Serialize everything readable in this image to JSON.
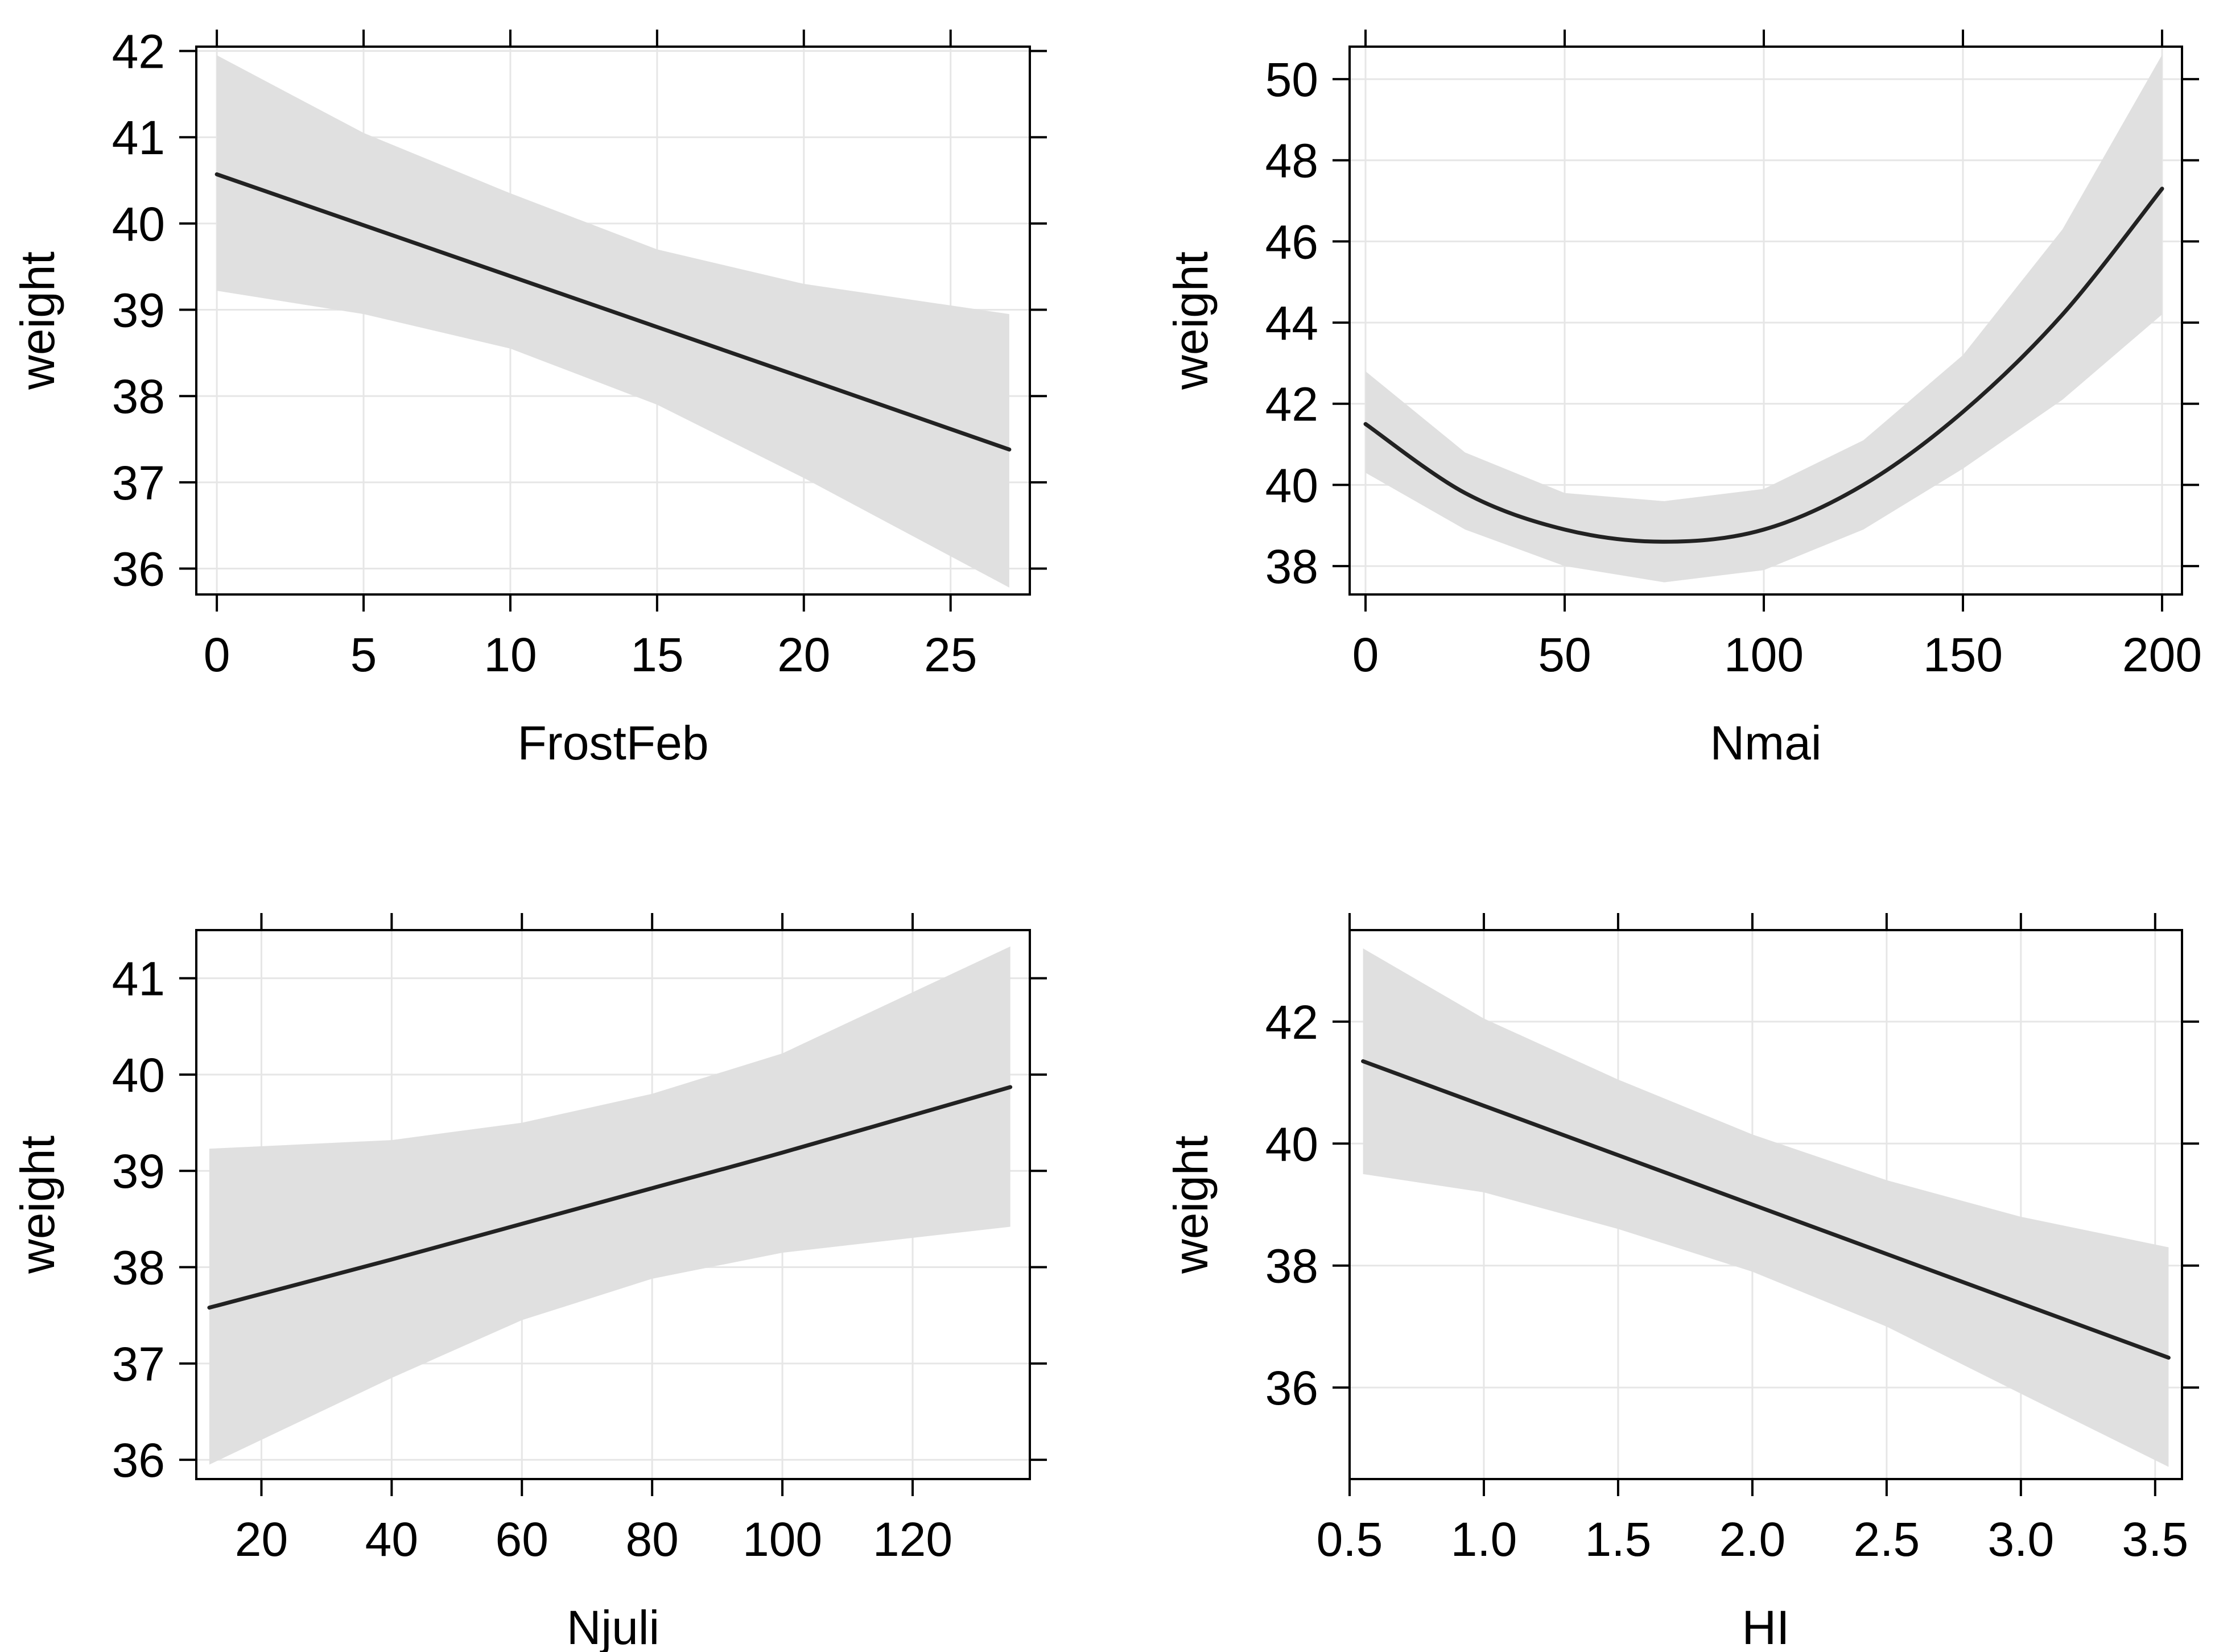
{
  "figure": {
    "type": "effect-plots",
    "panels": 4
  },
  "colors": {
    "line": "#222222",
    "band": "#e0e0e0",
    "grid": "#e6e6e6",
    "frame": "#000000",
    "text": "#000000"
  },
  "chart_data": [
    {
      "type": "line",
      "title": "",
      "xlabel": "FrostFeb",
      "ylabel": "weight",
      "xlim": [
        -0.7,
        27.7
      ],
      "ylim": [
        35.7,
        42.05
      ],
      "x_ticks": [
        0,
        5,
        10,
        15,
        20,
        25
      ],
      "x_tick_labels": [
        "0",
        "5",
        "10",
        "15",
        "20",
        "25"
      ],
      "y_ticks": [
        36,
        37,
        38,
        39,
        40,
        41,
        42
      ],
      "y_tick_labels": [
        "36",
        "37",
        "38",
        "39",
        "40",
        41,
        "42"
      ],
      "series": [
        {
          "name": "fit",
          "x": [
            0,
            5,
            10,
            15,
            20,
            27
          ],
          "y": [
            40.57,
            39.98,
            39.39,
            38.8,
            38.21,
            37.38
          ]
        },
        {
          "name": "lower",
          "x": [
            0,
            5,
            10,
            15,
            20,
            27
          ],
          "y": [
            39.22,
            38.95,
            38.55,
            37.9,
            37.05,
            35.78
          ]
        },
        {
          "name": "upper",
          "x": [
            0,
            5,
            10,
            15,
            20,
            27
          ],
          "y": [
            41.95,
            41.05,
            40.35,
            39.7,
            39.3,
            38.95
          ]
        }
      ]
    },
    {
      "type": "line",
      "title": "",
      "xlabel": "Nmai",
      "ylabel": "weight",
      "xlim": [
        -4,
        205
      ],
      "ylim": [
        37.3,
        50.8
      ],
      "x_ticks": [
        0,
        50,
        100,
        150,
        200
      ],
      "x_tick_labels": [
        "0",
        "50",
        "100",
        "150",
        "200"
      ],
      "y_ticks": [
        38,
        40,
        42,
        44,
        46,
        48,
        50
      ],
      "y_tick_labels": [
        "38",
        "40",
        "42",
        "44",
        "46",
        "48",
        "50"
      ],
      "series": [
        {
          "name": "fit",
          "x": [
            0,
            25,
            50,
            75,
            100,
            125,
            150,
            175,
            200
          ],
          "y": [
            41.5,
            39.8,
            38.9,
            38.6,
            38.9,
            40.0,
            41.8,
            44.2,
            47.3
          ]
        },
        {
          "name": "lower",
          "x": [
            0,
            25,
            50,
            75,
            100,
            125,
            150,
            175,
            200
          ],
          "y": [
            40.3,
            38.9,
            38.0,
            37.6,
            37.9,
            38.9,
            40.4,
            42.1,
            44.2
          ]
        },
        {
          "name": "upper",
          "x": [
            0,
            25,
            50,
            75,
            100,
            125,
            150,
            175,
            200
          ],
          "y": [
            42.8,
            40.8,
            39.8,
            39.6,
            39.9,
            41.1,
            43.2,
            46.3,
            50.6
          ]
        }
      ]
    },
    {
      "type": "line",
      "title": "",
      "xlabel": "Njuli",
      "ylabel": "weight",
      "xlim": [
        10,
        138
      ],
      "ylim": [
        35.8,
        41.5
      ],
      "x_ticks": [
        20,
        40,
        60,
        80,
        100,
        120
      ],
      "x_tick_labels": [
        "20",
        "40",
        "60",
        "80",
        "100",
        "120"
      ],
      "y_ticks": [
        36,
        37,
        38,
        39,
        40,
        41
      ],
      "y_tick_labels": [
        "36",
        "37",
        "38",
        "39",
        "40",
        "41"
      ],
      "series": [
        {
          "name": "fit",
          "x": [
            12,
            40,
            60,
            80,
            100,
            135
          ],
          "y": [
            37.58,
            38.08,
            38.45,
            38.82,
            39.19,
            39.87
          ]
        },
        {
          "name": "lower",
          "x": [
            12,
            40,
            60,
            80,
            100,
            135
          ],
          "y": [
            35.95,
            36.85,
            37.45,
            37.88,
            38.15,
            38.42
          ]
        },
        {
          "name": "upper",
          "x": [
            12,
            40,
            60,
            80,
            100,
            135
          ],
          "y": [
            39.23,
            39.32,
            39.5,
            39.8,
            40.22,
            41.33
          ]
        }
      ]
    },
    {
      "type": "line",
      "title": "",
      "xlabel": "HI",
      "ylabel": "weight",
      "xlim": [
        0.5,
        3.6
      ],
      "ylim": [
        34.5,
        43.5
      ],
      "x_ticks": [
        0.5,
        1.0,
        1.5,
        2.0,
        2.5,
        3.0,
        3.5
      ],
      "x_tick_labels": [
        "0.5",
        "1.0",
        "1.5",
        "2.0",
        "2.5",
        "3.0",
        "3.5"
      ],
      "y_ticks": [
        36,
        38,
        40,
        42
      ],
      "y_tick_labels": [
        "36",
        "38",
        "40",
        "42"
      ],
      "series": [
        {
          "name": "fit",
          "x": [
            0.55,
            1.0,
            1.5,
            2.0,
            2.5,
            3.0,
            3.55
          ],
          "y": [
            41.35,
            40.62,
            39.81,
            39.0,
            38.19,
            37.38,
            36.49
          ]
        },
        {
          "name": "lower",
          "x": [
            0.55,
            1.0,
            1.5,
            2.0,
            2.5,
            3.0,
            3.55
          ],
          "y": [
            39.5,
            39.2,
            38.6,
            37.9,
            37.0,
            35.9,
            34.7
          ]
        },
        {
          "name": "upper",
          "x": [
            0.55,
            1.0,
            1.5,
            2.0,
            2.5,
            3.0,
            3.55
          ],
          "y": [
            43.2,
            42.05,
            41.05,
            40.15,
            39.4,
            38.8,
            38.3
          ]
        }
      ]
    }
  ]
}
